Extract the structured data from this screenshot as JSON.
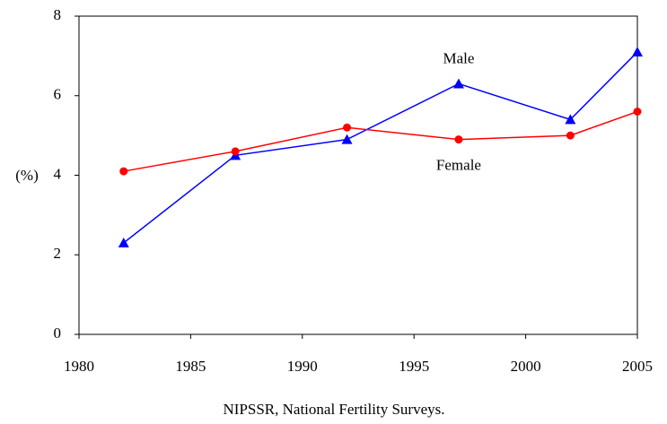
{
  "chart_data": {
    "type": "line",
    "x": [
      1982,
      1987,
      1992,
      1997,
      2002,
      2005
    ],
    "series": [
      {
        "name": "Male",
        "color": "#0000ff",
        "marker": "triangle",
        "values": [
          2.3,
          4.5,
          4.9,
          6.3,
          5.4,
          7.1
        ]
      },
      {
        "name": "Female",
        "color": "#ff0000",
        "marker": "circle",
        "values": [
          4.1,
          4.6,
          5.2,
          4.9,
          5.0,
          5.6
        ]
      }
    ],
    "xlim": [
      1980,
      2005
    ],
    "xticks": [
      1980,
      1985,
      1990,
      1995,
      2000,
      2005
    ],
    "ylim": [
      0,
      8
    ],
    "yticks": [
      0,
      2,
      4,
      6,
      8
    ],
    "ylabel": "(%)",
    "caption": "NIPSSR, National Fertility Surveys.",
    "grid": false
  }
}
